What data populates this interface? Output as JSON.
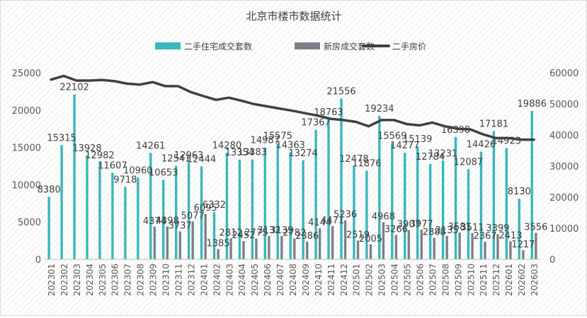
{
  "chart_data": {
    "type": "bar",
    "title": "北京市楼市数据统计",
    "legend": {
      "position": "top-center",
      "entries": [
        {
          "name": "二手住宅成交套数",
          "kind": "bar",
          "color": "#38b8bc"
        },
        {
          "name": "新房成交套数",
          "kind": "bar",
          "color": "#7f7f89"
        },
        {
          "name": "二手房价",
          "kind": "line",
          "color": "#404040"
        }
      ]
    },
    "categories": [
      "202301",
      "202302",
      "202303",
      "202304",
      "202305",
      "202306",
      "202307",
      "202308",
      "202309",
      "202310",
      "202311",
      "202312",
      "202401",
      "202402",
      "202403",
      "202404",
      "202405",
      "202406",
      "202407",
      "202408",
      "202409",
      "202410",
      "202411",
      "202412",
      "202501",
      "202502",
      "202503",
      "202504",
      "202505",
      "202506",
      "202507",
      "202508",
      "202509",
      "202510",
      "202511",
      "202512",
      "202601",
      "202602",
      "202603"
    ],
    "series": [
      {
        "name": "二手住宅成交套数",
        "type": "bar",
        "axis": "left",
        "values": [
          8380,
          15315,
          22102,
          13928,
          12982,
          11607,
          9718,
          10960,
          14261,
          10653,
          12541,
          12963,
          12444,
          6332,
          14280,
          13354,
          13383,
          14987,
          15575,
          14363,
          13274,
          17367,
          18763,
          21556,
          12478,
          11876,
          19234,
          15569,
          14277,
          15139,
          12784,
          13231,
          16398,
          12087,
          14426,
          17181,
          14923,
          8130,
          19886
        ]
      },
      {
        "name": "新房成交套数",
        "type": "bar",
        "axis": "left",
        "values": [
          null,
          null,
          null,
          null,
          null,
          null,
          null,
          null,
          4374,
          4398,
          3737,
          5077,
          6095,
          1385,
          2812,
          2452,
          2775,
          3132,
          3139,
          2782,
          2386,
          4144,
          4471,
          5236,
          2519,
          2005,
          4968,
          3266,
          3907,
          3977,
          2888,
          3135,
          3581,
          3511,
          2367,
          3399,
          2413,
          1217,
          3556
        ]
      },
      {
        "name": "二手房价",
        "type": "line",
        "axis": "right",
        "values": [
          57800,
          59000,
          57500,
          57500,
          57700,
          57300,
          56500,
          56200,
          57000,
          55700,
          55700,
          53800,
          52500,
          51300,
          52000,
          51000,
          49900,
          49200,
          48500,
          47800,
          47000,
          46200,
          45200,
          44800,
          44200,
          42800,
          44800,
          44800,
          43500,
          43100,
          44000,
          42800,
          42000,
          41800,
          40200,
          39000,
          39000,
          38500,
          38500
        ]
      }
    ],
    "bar_labels": [
      [
        "8380",
        "15315",
        "22102",
        "13928",
        "12982",
        "11607",
        "9718",
        "10960",
        "14261",
        "10653",
        "12541",
        "12963",
        "12444",
        "6332",
        "14280",
        "13354",
        "13383",
        "14987",
        "15575",
        "14363",
        "13274",
        "17367",
        "18763",
        "21556",
        "12478",
        "11876",
        "19234",
        "15569",
        "14277",
        "15139",
        "12784",
        "13231",
        "16398",
        "12087",
        "14426",
        "17181",
        "14923",
        "8130",
        "19886"
      ],
      [
        "",
        "",
        "",
        "",
        "",
        "",
        "",
        "",
        "4374",
        "4398",
        "3737",
        "5077",
        "6095",
        "1385",
        "2812",
        "2452",
        "2775",
        "3132",
        "3139",
        "2782",
        "2386",
        "4144",
        "4471",
        "5236",
        "2519",
        "2005",
        "4968",
        "3266",
        "3907",
        "3977",
        "2888",
        "3135",
        "3581",
        "3511",
        "2367",
        "3399",
        "2413",
        "1217",
        "3556"
      ]
    ],
    "left_axis": {
      "min": 0,
      "max": 25000,
      "ticks": [
        "0",
        "5000",
        "10000",
        "15000",
        "20000",
        "25000"
      ]
    },
    "right_axis": {
      "min": 0,
      "max": 60000,
      "ticks": [
        "0",
        "10000",
        "20000",
        "30000",
        "40000",
        "50000",
        "60000"
      ]
    },
    "grid": false,
    "xlabel": "",
    "ylabel": ""
  }
}
